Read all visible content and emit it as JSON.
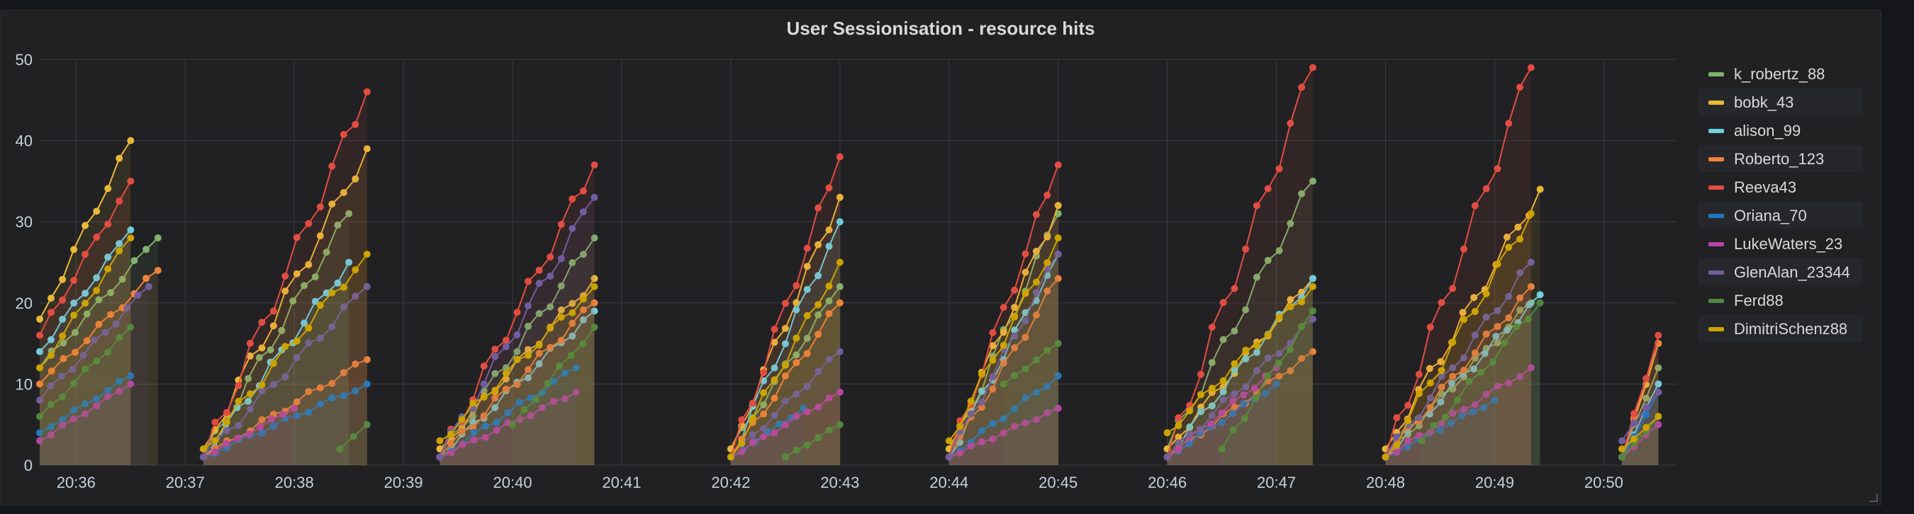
{
  "panel": {
    "title": "User Sessionisation - resource hits"
  },
  "chart_data": {
    "type": "area",
    "title": "User Sessionisation - resource hits",
    "xlabel": "",
    "ylabel": "",
    "ylim": [
      0,
      50
    ],
    "y_ticks": [
      0,
      10,
      20,
      30,
      40,
      50
    ],
    "x_tick_labels": [
      "20:36",
      "20:37",
      "20:38",
      "20:39",
      "20:40",
      "20:41",
      "20:42",
      "20:43",
      "20:44",
      "20:45",
      "20:46",
      "20:47",
      "20:48",
      "20:49",
      "20:50"
    ],
    "x_range": [
      "20:35:40",
      "20:50:40"
    ],
    "grid": true,
    "legend_position": "right",
    "series": [
      {
        "name": "k_robertz_88",
        "color": "#7eb26d",
        "segments": [
          [
            "20:35:40",
            12,
            "20:36:45",
            28
          ],
          [
            "20:37:10",
            1,
            "20:38:30",
            31
          ],
          [
            "20:39:20",
            1,
            "20:40:45",
            28
          ],
          [
            "20:42:00",
            2,
            "20:43:00",
            22
          ],
          [
            "20:44:00",
            1,
            "20:45:00",
            31
          ],
          [
            "20:46:00",
            2,
            "20:47:20",
            35
          ],
          [
            "20:48:00",
            1,
            "20:49:20",
            20
          ],
          [
            "20:50:10",
            1,
            "20:50:30",
            12
          ]
        ]
      },
      {
        "name": "bobk_43",
        "color": "#eab839",
        "segments": [
          [
            "20:35:40",
            18,
            "20:36:30",
            40
          ],
          [
            "20:37:10",
            2,
            "20:38:40",
            39
          ],
          [
            "20:39:20",
            2,
            "20:40:45",
            23
          ],
          [
            "20:42:00",
            2,
            "20:43:00",
            33
          ],
          [
            "20:44:00",
            2,
            "20:45:00",
            32
          ],
          [
            "20:46:00",
            2,
            "20:47:20",
            23
          ],
          [
            "20:48:00",
            2,
            "20:49:25",
            34
          ],
          [
            "20:50:10",
            1,
            "20:50:30",
            15
          ]
        ]
      },
      {
        "name": "alison_99",
        "color": "#6ed0e0",
        "segments": [
          [
            "20:35:40",
            14,
            "20:36:30",
            29
          ],
          [
            "20:37:10",
            1,
            "20:38:30",
            25
          ],
          [
            "20:39:20",
            1,
            "20:40:45",
            19
          ],
          [
            "20:42:00",
            1,
            "20:43:00",
            30
          ],
          [
            "20:44:00",
            1,
            "20:45:00",
            26
          ],
          [
            "20:46:00",
            1,
            "20:47:20",
            23
          ],
          [
            "20:48:00",
            1,
            "20:49:25",
            21
          ],
          [
            "20:50:10",
            1,
            "20:50:30",
            10
          ]
        ]
      },
      {
        "name": "Roberto_123",
        "color": "#ef843c",
        "segments": [
          [
            "20:35:40",
            10,
            "20:36:45",
            24
          ],
          [
            "20:37:10",
            1,
            "20:38:40",
            13
          ],
          [
            "20:39:20",
            1,
            "20:40:45",
            20
          ],
          [
            "20:42:00",
            1,
            "20:43:00",
            20
          ],
          [
            "20:44:00",
            1,
            "20:45:00",
            23
          ],
          [
            "20:46:00",
            1,
            "20:47:20",
            14
          ],
          [
            "20:48:00",
            1,
            "20:49:20",
            22
          ],
          [
            "20:50:10",
            1,
            "20:50:30",
            15
          ]
        ]
      },
      {
        "name": "Reeva43",
        "color": "#e24d42",
        "segments": [
          [
            "20:35:40",
            16,
            "20:36:30",
            35
          ],
          [
            "20:37:10",
            1,
            "20:38:40",
            46
          ],
          [
            "20:39:20",
            1,
            "20:40:45",
            37
          ],
          [
            "20:42:00",
            1,
            "20:43:00",
            38
          ],
          [
            "20:44:00",
            1,
            "20:45:00",
            37
          ],
          [
            "20:46:00",
            1,
            "20:47:20",
            49
          ],
          [
            "20:48:00",
            1,
            "20:49:20",
            49
          ],
          [
            "20:50:10",
            1,
            "20:50:30",
            16
          ]
        ]
      },
      {
        "name": "Oriana_70",
        "color": "#1f78c1",
        "segments": [
          [
            "20:35:40",
            4,
            "20:36:30",
            11
          ],
          [
            "20:37:10",
            1,
            "20:38:40",
            10
          ],
          [
            "20:39:20",
            1,
            "20:40:35",
            12
          ],
          [
            "20:42:00",
            1,
            "20:42:40",
            7
          ],
          [
            "20:44:00",
            1,
            "20:45:00",
            11
          ],
          [
            "20:46:00",
            1,
            "20:47:00",
            10
          ],
          [
            "20:48:00",
            1,
            "20:49:00",
            8
          ],
          [
            "20:50:10",
            1,
            "20:50:30",
            9
          ]
        ]
      },
      {
        "name": "LukeWaters_23",
        "color": "#ba43a9",
        "segments": [
          [
            "20:35:40",
            3,
            "20:36:30",
            10
          ],
          [
            "20:37:10",
            1,
            "20:38:00",
            7
          ],
          [
            "20:39:20",
            1,
            "20:40:35",
            9
          ],
          [
            "20:42:00",
            1,
            "20:43:00",
            9
          ],
          [
            "20:44:00",
            1,
            "20:45:00",
            7
          ],
          [
            "20:46:00",
            1,
            "20:47:00",
            12
          ],
          [
            "20:48:00",
            1,
            "20:49:20",
            12
          ],
          [
            "20:50:10",
            1,
            "20:50:30",
            5
          ]
        ]
      },
      {
        "name": "GlenAlan_23344",
        "color": "#705da0",
        "segments": [
          [
            "20:35:40",
            8,
            "20:36:40",
            22
          ],
          [
            "20:37:10",
            1,
            "20:38:40",
            22
          ],
          [
            "20:39:20",
            1,
            "20:40:45",
            33
          ],
          [
            "20:42:00",
            1,
            "20:43:00",
            14
          ],
          [
            "20:44:00",
            1,
            "20:45:00",
            26
          ],
          [
            "20:46:00",
            1,
            "20:47:20",
            18
          ],
          [
            "20:48:00",
            1,
            "20:49:20",
            25
          ],
          [
            "20:50:10",
            3,
            "20:50:30",
            9
          ]
        ]
      },
      {
        "name": "Ferd88",
        "color": "#508642",
        "segments": [
          [
            "20:35:40",
            6,
            "20:36:30",
            17
          ],
          [
            "20:38:25",
            2,
            "20:38:40",
            5
          ],
          [
            "20:40:00",
            5,
            "20:40:45",
            17
          ],
          [
            "20:42:30",
            1,
            "20:43:00",
            5
          ],
          [
            "20:44:30",
            10,
            "20:45:00",
            15
          ],
          [
            "20:46:30",
            2,
            "20:47:20",
            19
          ],
          [
            "20:48:20",
            3,
            "20:49:25",
            20
          ],
          [
            "20:50:10",
            1,
            "20:50:30",
            6
          ]
        ]
      },
      {
        "name": "DimitriSchenz88",
        "color": "#cca300",
        "segments": [
          [
            "20:35:40",
            12,
            "20:36:30",
            28
          ],
          [
            "20:37:10",
            2,
            "20:38:40",
            26
          ],
          [
            "20:39:20",
            3,
            "20:40:45",
            22
          ],
          [
            "20:42:00",
            1,
            "20:43:00",
            25
          ],
          [
            "20:44:00",
            3,
            "20:45:00",
            28
          ],
          [
            "20:46:00",
            4,
            "20:47:20",
            22
          ],
          [
            "20:48:00",
            1,
            "20:49:20",
            31
          ],
          [
            "20:50:10",
            2,
            "20:50:30",
            6
          ]
        ]
      }
    ]
  }
}
